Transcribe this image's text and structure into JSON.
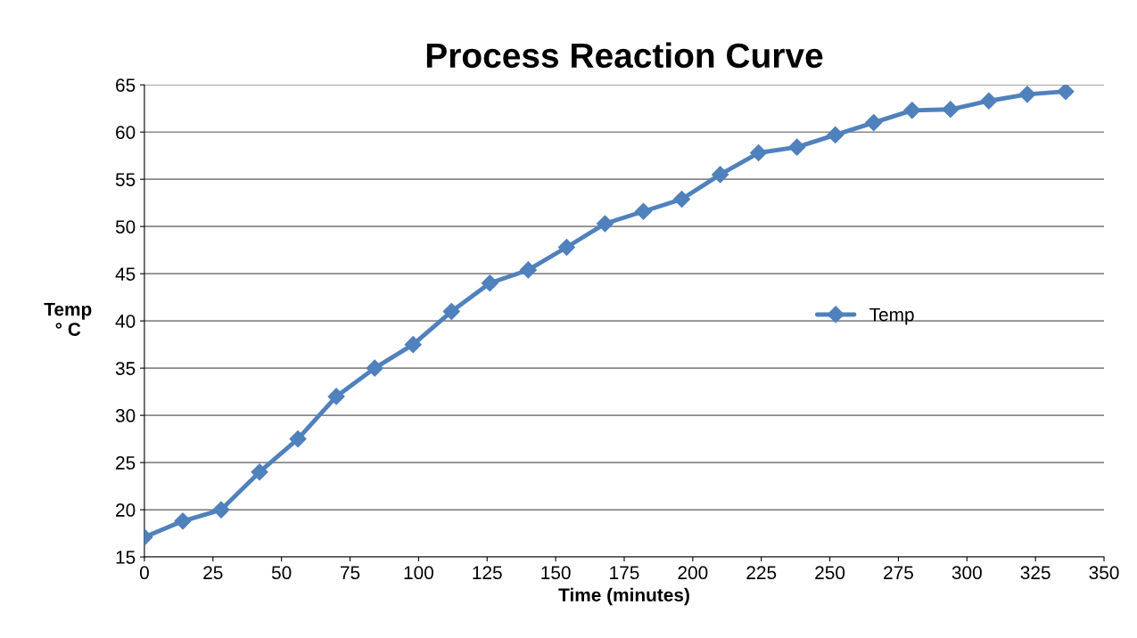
{
  "chart_data": {
    "type": "line",
    "title": "Process Reaction Curve",
    "xlabel": "Time (minutes)",
    "ylabel": "Temp\n° C",
    "x": [
      0,
      14,
      28,
      42,
      56,
      70,
      84,
      98,
      112,
      126,
      140,
      154,
      168,
      182,
      196,
      210,
      224,
      238,
      252,
      266,
      280,
      294,
      308,
      322,
      336
    ],
    "series": [
      {
        "name": "Temp",
        "color": "#4f81bd",
        "values": [
          17.1,
          18.8,
          20.0,
          24.0,
          27.5,
          32.0,
          35.0,
          37.5,
          41.0,
          44.0,
          45.4,
          47.8,
          50.3,
          51.6,
          52.9,
          55.5,
          57.8,
          58.4,
          59.7,
          61.0,
          62.3,
          62.4,
          63.3,
          64.0,
          64.3
        ]
      }
    ],
    "xlim": [
      0,
      350
    ],
    "xticks": [
      0,
      25,
      50,
      75,
      100,
      125,
      150,
      175,
      200,
      225,
      250,
      275,
      300,
      325,
      350
    ],
    "ylim": [
      15,
      65
    ],
    "yticks": [
      15,
      20,
      25,
      30,
      35,
      40,
      45,
      50,
      55,
      60,
      65
    ],
    "grid": "y",
    "legend": "right",
    "marker": "diamond",
    "line_style": "solid"
  }
}
